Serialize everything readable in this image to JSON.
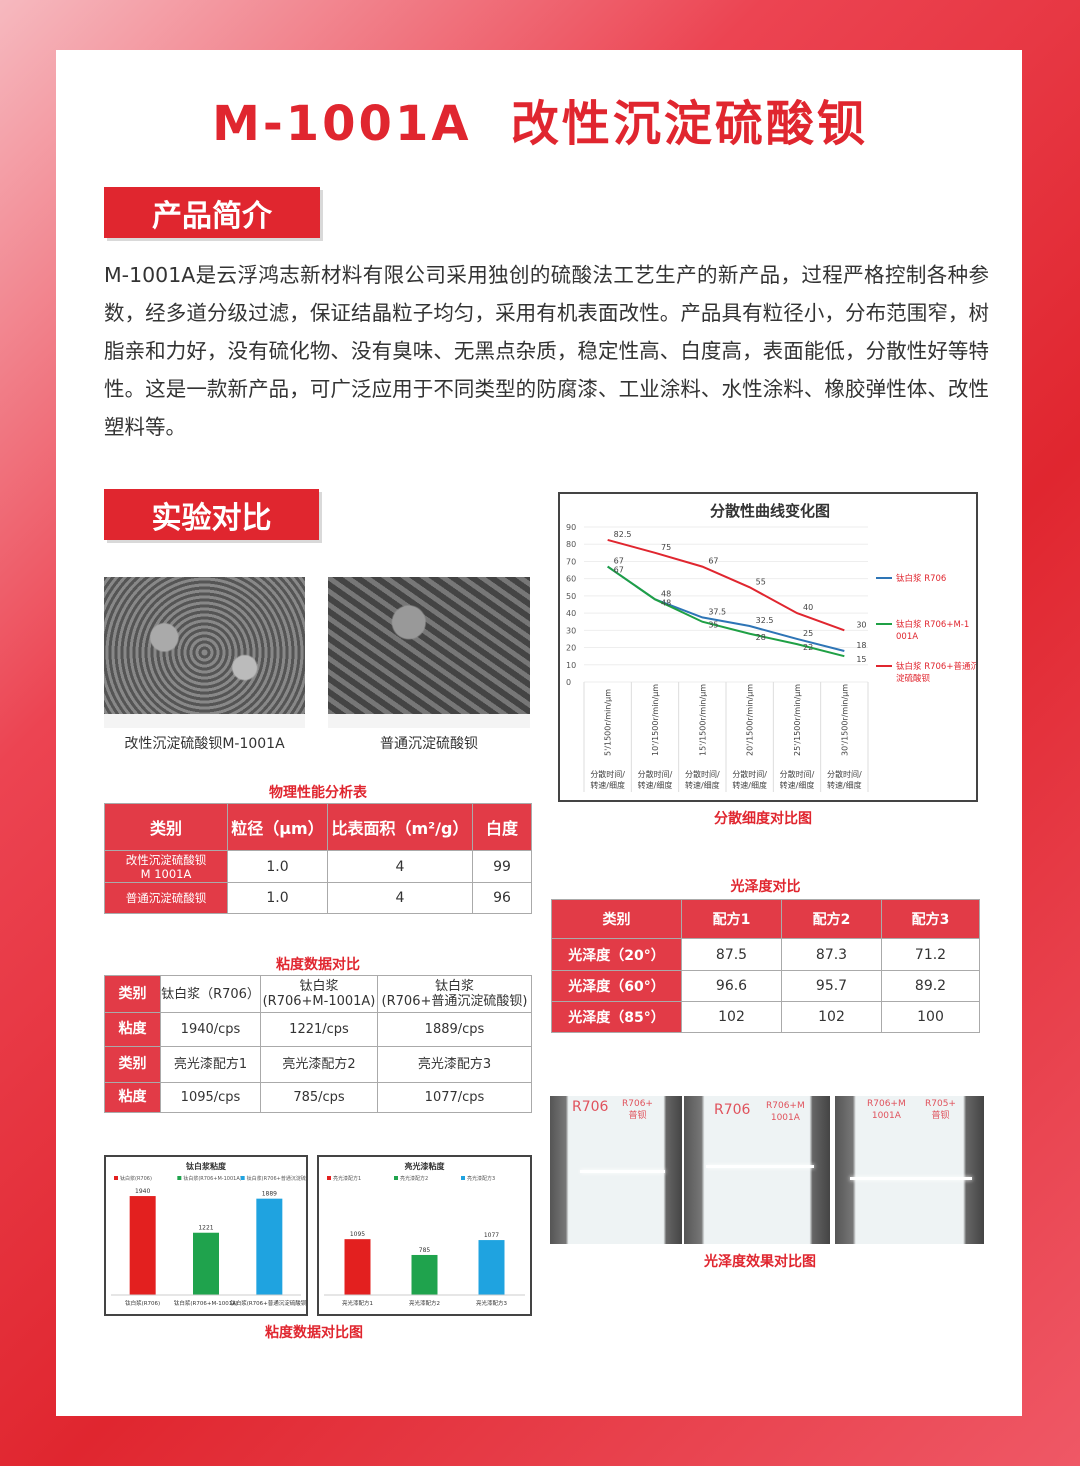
{
  "title": "M-1001A  改性沉淀硫酸钡",
  "intro": {
    "heading": "产品简介",
    "text": "M-1001A是云浮鸿志新材料有限公司采用独创的硫酸法工艺生产的新产品，过程严格控制各种参数，经多道分级过滤，保证结晶粒子均匀，采用有机表面改性。产品具有粒径小，分布范围窄，树脂亲和力好，没有硫化物、没有臭味、无黑点杂质，稳定性高、白度高，表面能低，分散性好等特性。这是一款新产品，可广泛应用于不同类型的防腐漆、工业涂料、水性涂料、橡胶弹性体、改性塑料等。"
  },
  "experiment": {
    "heading": "实验对比"
  },
  "sem_images": [
    {
      "caption": "改性沉淀硫酸钡M-1001A"
    },
    {
      "caption": "普通沉淀硫酸钡"
    }
  ],
  "physical_table": {
    "title": "物理性能分析表",
    "headers": [
      "类别",
      "粒径（μm）",
      "比表面积（m²/g）",
      "白度"
    ],
    "rows": [
      [
        "改性沉淀硫酸钡\nM 1001A",
        "1.0",
        "4",
        "99"
      ],
      [
        "普通沉淀硫酸钡",
        "1.0",
        "4",
        "96"
      ]
    ]
  },
  "viscosity_table": {
    "title": "粘度数据对比",
    "rows": [
      [
        "类别",
        "钛白浆（R706）",
        "钛白浆\n(R706+M-1001A)",
        "钛白浆\n(R706+普通沉淀硫酸钡)"
      ],
      [
        "粘度",
        "1940/cps",
        "1221/cps",
        "1889/cps"
      ],
      [
        "类别",
        "亮光漆配方1",
        "亮光漆配方2",
        "亮光漆配方3"
      ],
      [
        "粘度",
        "1095/cps",
        "785/cps",
        "1077/cps"
      ]
    ]
  },
  "gloss_table": {
    "title": "光泽度对比",
    "headers": [
      "类别",
      "配方1",
      "配方2",
      "配方3"
    ],
    "rows": [
      [
        "光泽度（20°）",
        "87.5",
        "87.3",
        "71.2"
      ],
      [
        "光泽度（60°）",
        "96.6",
        "95.7",
        "89.2"
      ],
      [
        "光泽度（85°）",
        "102",
        "102",
        "100"
      ]
    ]
  },
  "photos": {
    "caption": "光泽度效果对比图",
    "panels": [
      {
        "left": "R706",
        "right": "R706+\n普钡"
      },
      {
        "left": "R706",
        "right": "R706+M\n1001A"
      },
      {
        "left": "R706+M\n1001A",
        "right": "R705+\n普钡"
      }
    ]
  },
  "chart_data": [
    {
      "type": "line",
      "title": "分散性曲线变化图",
      "caption": "分散细度对比图",
      "categories": [
        "5'/1500r/min/μm",
        "10'/1500r/min/μm",
        "15'/1500r/min/μm",
        "20'/1500r/min/μm",
        "25'/1500r/min/μm",
        "30'/1500r/min/μm"
      ],
      "category_sublabel": "分散时间/\n转速/细度",
      "ylim": [
        0,
        90
      ],
      "yticks": [
        0,
        10,
        20,
        30,
        40,
        50,
        60,
        70,
        80,
        90
      ],
      "legend": "right",
      "series": [
        {
          "name": "钛白浆 R706",
          "color": "#2e75b6",
          "values": [
            67,
            48,
            37.5,
            32.5,
            25,
            18
          ]
        },
        {
          "name": "钛白浆 R706+M-1001A",
          "color": "#1fa045",
          "values": [
            67,
            48,
            35,
            28,
            22,
            15
          ]
        },
        {
          "name": "钛白浆 R706+普通沉淀硫酸钡",
          "color": "#e0262f",
          "values": [
            82.5,
            75,
            67,
            55,
            40,
            30
          ]
        }
      ]
    },
    {
      "type": "bar",
      "title": "钛白浆粘度",
      "categories": [
        "钛白浆(R706)",
        "钛白浆(R706+M-1001A)",
        "钛白浆(R706+普通沉淀硫酸钡)"
      ],
      "values": [
        1940,
        1221,
        1889
      ],
      "colors": [
        "#e3201f",
        "#1fa34d",
        "#1fa3e0"
      ],
      "legend": "top"
    },
    {
      "type": "bar",
      "title": "亮光漆粘度",
      "categories": [
        "亮光漆配方1",
        "亮光漆配方2",
        "亮光漆配方3"
      ],
      "values": [
        1095,
        785,
        1077
      ],
      "colors": [
        "#e3201f",
        "#1fa34d",
        "#1fa3e0"
      ],
      "legend": "top",
      "caption": "粘度数据对比图"
    }
  ]
}
